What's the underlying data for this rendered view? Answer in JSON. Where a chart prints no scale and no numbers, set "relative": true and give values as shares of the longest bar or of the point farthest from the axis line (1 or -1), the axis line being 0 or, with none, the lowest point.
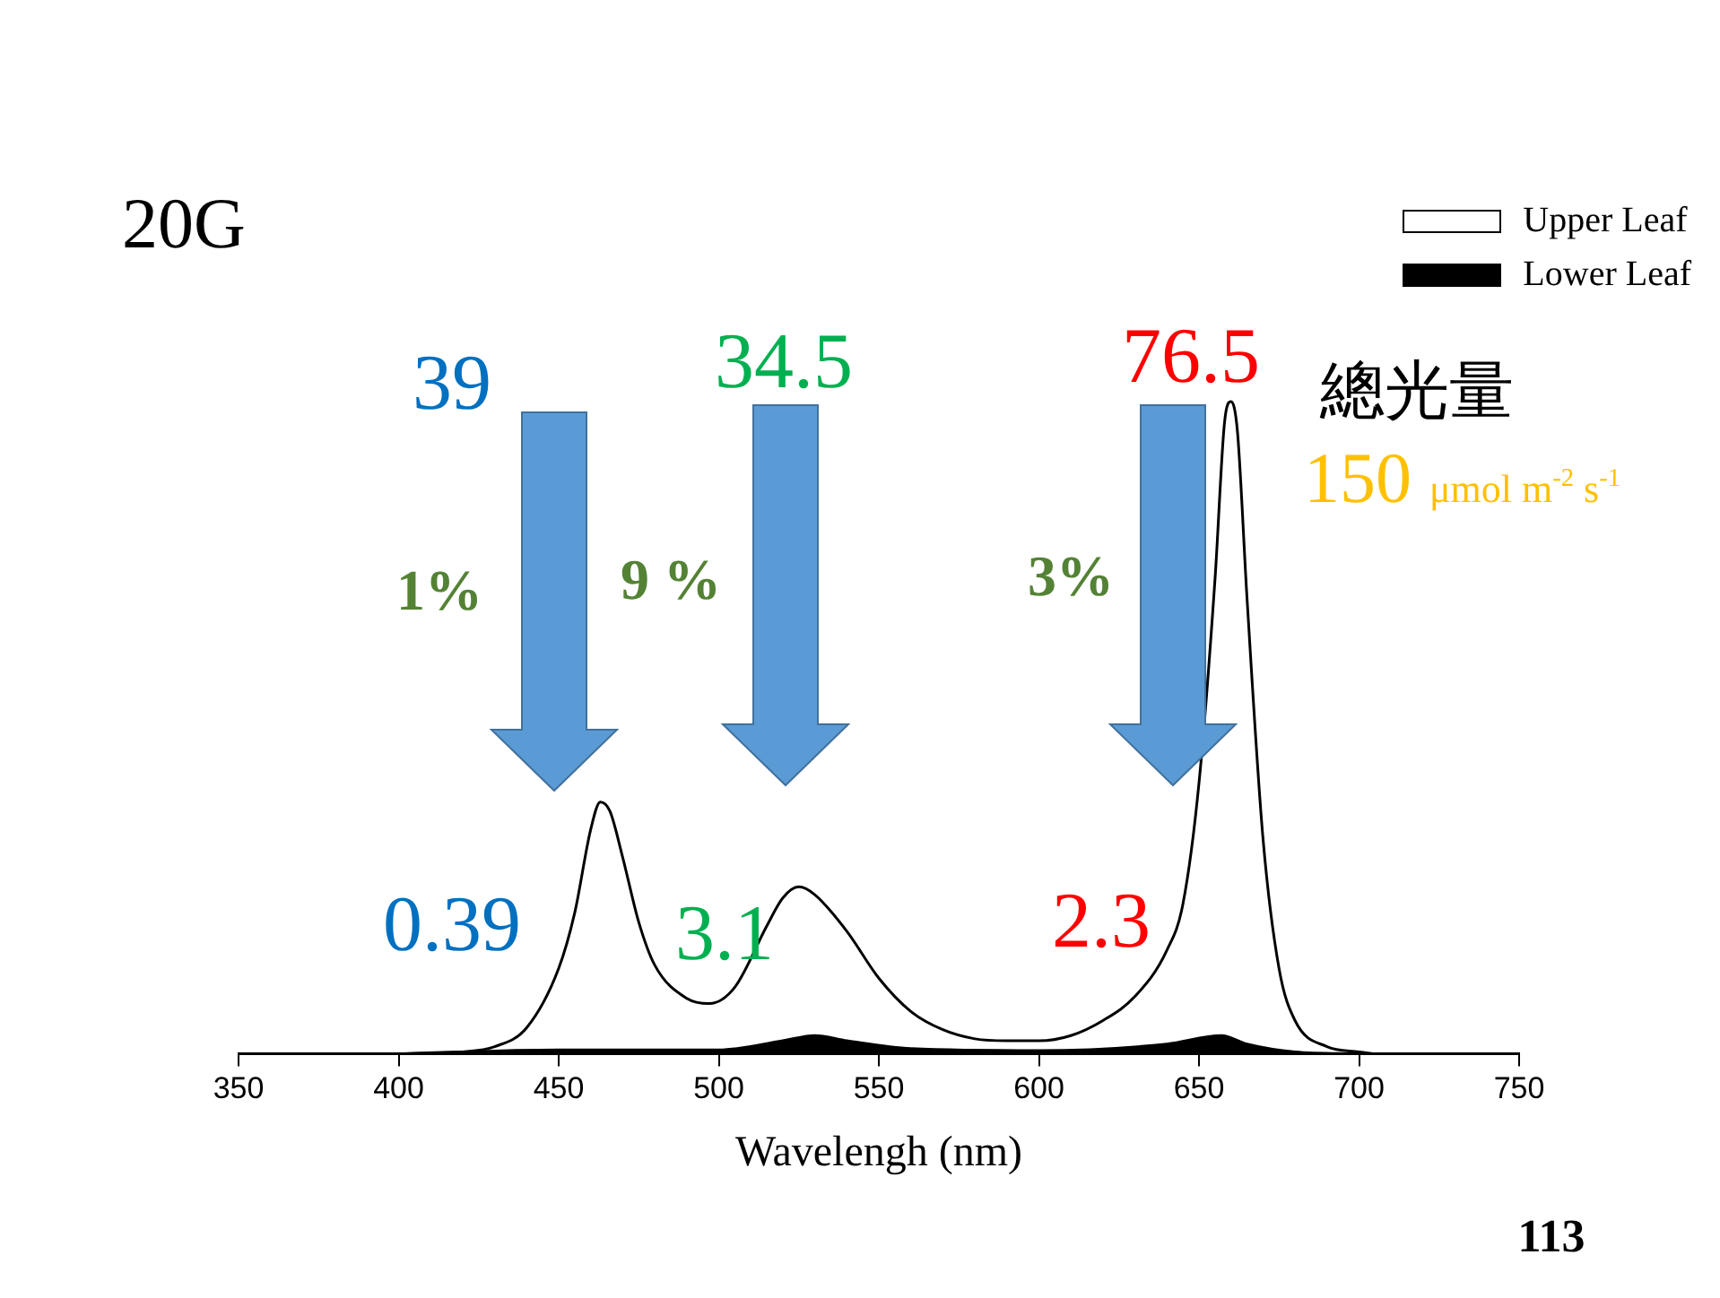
{
  "chart_data": {
    "type": "area",
    "title": "20G",
    "xlabel": "Wavelengh (nm)",
    "relative": true,
    "xlim": [
      350,
      750
    ],
    "xticks": [
      350,
      400,
      450,
      500,
      550,
      600,
      650,
      700,
      750
    ],
    "grid": false,
    "legend": "top right",
    "marker": "none",
    "series": [
      {
        "name": "Upper  Leaf",
        "type": "line",
        "color": "#000000",
        "x": [
          400,
          420,
          430,
          440,
          450,
          455,
          460,
          463,
          466,
          470,
          475,
          480,
          490,
          497,
          505,
          515,
          520,
          525,
          530,
          540,
          550,
          560,
          570,
          580,
          590,
          600,
          610,
          620,
          630,
          640,
          645,
          650,
          655,
          658,
          660,
          662,
          665,
          670,
          675,
          680,
          690,
          700,
          705
        ],
        "values": [
          0,
          0.003,
          0.011,
          0.04,
          0.131,
          0.216,
          0.344,
          0.386,
          0.372,
          0.301,
          0.202,
          0.136,
          0.085,
          0.077,
          0.102,
          0.196,
          0.239,
          0.256,
          0.244,
          0.188,
          0.116,
          0.065,
          0.037,
          0.023,
          0.02,
          0.02,
          0.028,
          0.051,
          0.088,
          0.159,
          0.23,
          0.415,
          0.727,
          0.969,
          1,
          0.955,
          0.699,
          0.33,
          0.131,
          0.051,
          0.011,
          0.003,
          0
        ]
      },
      {
        "name": "Lower Leaf",
        "color": "#000000",
        "x": [
          400,
          450,
          500,
          520,
          530,
          540,
          560,
          600,
          640,
          657,
          665,
          680,
          700
        ],
        "values": [
          0,
          0.006,
          0.006,
          0.02,
          0.028,
          0.02,
          0.008,
          0.005,
          0.015,
          0.028,
          0.015,
          0.003,
          0
        ]
      }
    ],
    "annotations": [
      "39",
      "34.5",
      "76.5",
      "0.39",
      "3.1",
      "2.3",
      "1%",
      "9 %",
      "3%",
      "總光量",
      "150 μmol m$^{-2}$ s$^{-1}$",
      "113"
    ]
  }
}
